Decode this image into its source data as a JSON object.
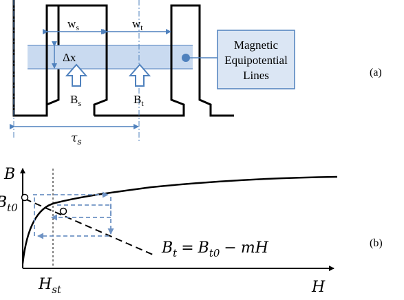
{
  "figure_a": {
    "label_ws_base": "w",
    "label_ws_sub": "s",
    "label_wt_base": "w",
    "label_wt_sub": "t",
    "label_dx": "Δx",
    "label_bs_base": "B",
    "label_bs_sub": "s",
    "label_bt_base": "B",
    "label_bt_sub": "t",
    "label_tau_base": "τ",
    "label_tau_sub": "s",
    "callout_lines": [
      "Magnetic",
      "Equipotential",
      "Lines"
    ],
    "panel_label": "(a)"
  },
  "figure_b": {
    "axis_y_label": "B",
    "axis_x_label": "H",
    "bt0_base": "B",
    "bt0_sub": "t0",
    "hst_base": "H",
    "hst_sub": "st",
    "equation": {
      "lhs_base": "B",
      "lhs_sub": "t",
      "eq": "=",
      "rhs1_base": "B",
      "rhs1_sub": "t0",
      "minus": "−",
      "rhs2": "mH"
    },
    "panel_label": "(b)"
  },
  "colors": {
    "outline": "#000000",
    "band_fill": "#c9daf0",
    "band_line": "#7b9fcf",
    "accent": "#4f81bd",
    "callout_fill": "#dbe6f4",
    "dashed_blue": "#6f93c4"
  }
}
